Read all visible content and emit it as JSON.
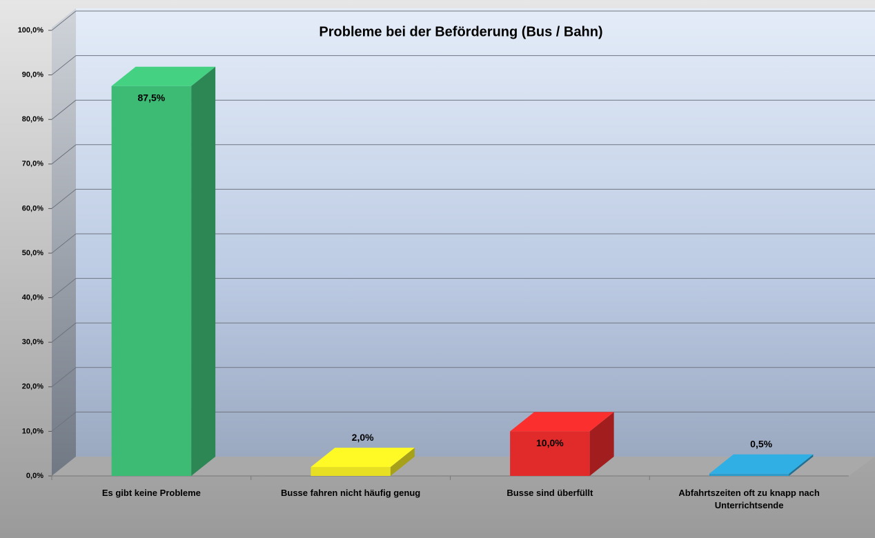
{
  "chart_data": {
    "type": "bar3d",
    "title": "Probleme bei der Beförderung (Bus / Bahn)",
    "categories": [
      "Es gibt keine Probleme",
      "Busse fahren nicht häufig genug",
      "Busse sind überfüllt",
      "Abfahrtszeiten oft zu knapp nach Unterrichtsende"
    ],
    "values": [
      87.5,
      2.0,
      10.0,
      0.5
    ],
    "value_labels": [
      "87,5%",
      "2,0%",
      "10,0%",
      "0,5%"
    ],
    "colors": [
      "#3dbb74",
      "#e6df22",
      "#e12a2a",
      "#2b9ccc"
    ],
    "ylim": [
      0,
      100
    ],
    "yticks": [
      {
        "value": 0,
        "label": "0,0%"
      },
      {
        "value": 10,
        "label": "10,0%"
      },
      {
        "value": 20,
        "label": "20,0%"
      },
      {
        "value": 30,
        "label": "30,0%"
      },
      {
        "value": 40,
        "label": "40,0%"
      },
      {
        "value": 50,
        "label": "50,0%"
      },
      {
        "value": 60,
        "label": "60,0%"
      },
      {
        "value": 70,
        "label": "70,0%"
      },
      {
        "value": 80,
        "label": "80,0%"
      },
      {
        "value": 90,
        "label": "90,0%"
      },
      {
        "value": 100,
        "label": "100,0%"
      }
    ],
    "grid": true
  }
}
